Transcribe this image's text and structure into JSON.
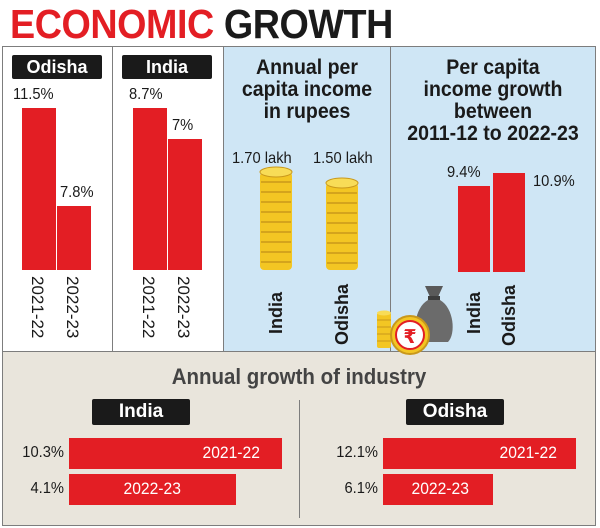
{
  "header": {
    "title_part1": "ECONOMIC",
    "title_part2": "GROWTH"
  },
  "chart_data": [
    {
      "type": "bar",
      "title": "Odisha",
      "categories": [
        "2021-22",
        "2022-23"
      ],
      "values": [
        11.5,
        7.8
      ],
      "value_labels": [
        "11.5%",
        "7.8%"
      ],
      "ylim": [
        0,
        12
      ]
    },
    {
      "type": "bar",
      "title": "India",
      "categories": [
        "2021-22",
        "2022-23"
      ],
      "values": [
        8.7,
        7
      ],
      "value_labels": [
        "8.7%",
        "7%"
      ],
      "ylim": [
        0,
        12
      ]
    },
    {
      "type": "bar",
      "title_lines": [
        "Annual per",
        "capita income",
        "in rupees"
      ],
      "categories": [
        "India",
        "Odisha"
      ],
      "values": [
        1.7,
        1.5
      ],
      "value_labels": [
        "1.70 lakh",
        "1.50 lakh"
      ],
      "unit": "lakh rupees"
    },
    {
      "type": "bar",
      "title_lines": [
        "Per capita",
        "income growth",
        "between",
        "2011-12 to 2022-23"
      ],
      "categories": [
        "India",
        "Odisha"
      ],
      "values": [
        9.4,
        10.9
      ],
      "value_labels": [
        "9.4%",
        "10.9%"
      ],
      "ylim": [
        0,
        11.5
      ]
    },
    {
      "type": "bar",
      "orientation": "horizontal",
      "title": "Annual growth of industry",
      "groups": [
        {
          "name": "India",
          "categories": [
            "2021-22",
            "2022-23"
          ],
          "values": [
            10.3,
            4.1
          ],
          "value_labels": [
            "10.3%",
            "4.1%"
          ]
        },
        {
          "name": "Odisha",
          "categories": [
            "2021-22",
            "2022-23"
          ],
          "values": [
            12.1,
            6.1
          ],
          "value_labels": [
            "12.1%",
            "6.1%"
          ]
        }
      ]
    }
  ],
  "icons": {
    "coin_stack": "coin-stack-icon",
    "money_bag": "money-bag-icon",
    "rupee_coin": "rupee-coin-icon"
  },
  "colors": {
    "accent_red": "#e31e24",
    "panel_blue": "#cfe6f5",
    "panel_beige": "#e9e5dc",
    "badge_black": "#1a1a1a",
    "coin_gold": "#f3c623"
  }
}
